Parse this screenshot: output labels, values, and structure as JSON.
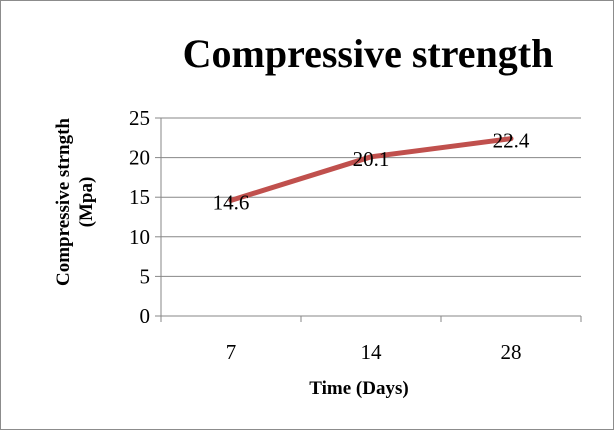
{
  "chart_data": {
    "type": "line",
    "title": "Compressive strength",
    "xlabel": "Time (Days)",
    "ylabel_lines": [
      "Compressive strngth",
      "(Mpa)"
    ],
    "categories": [
      "7",
      "14",
      "28"
    ],
    "series": [
      {
        "values": [
          14.6,
          20.1,
          22.4
        ],
        "data_labels": [
          "14.6",
          "20.1",
          "22.4"
        ]
      }
    ],
    "y_ticks": [
      0,
      5,
      10,
      15,
      20,
      25
    ],
    "ylim": [
      0,
      25
    ],
    "grid": "horizontal",
    "legend": "none",
    "colors": {
      "line": "#c0504d",
      "grid": "#878787",
      "axis": "#878787"
    }
  }
}
